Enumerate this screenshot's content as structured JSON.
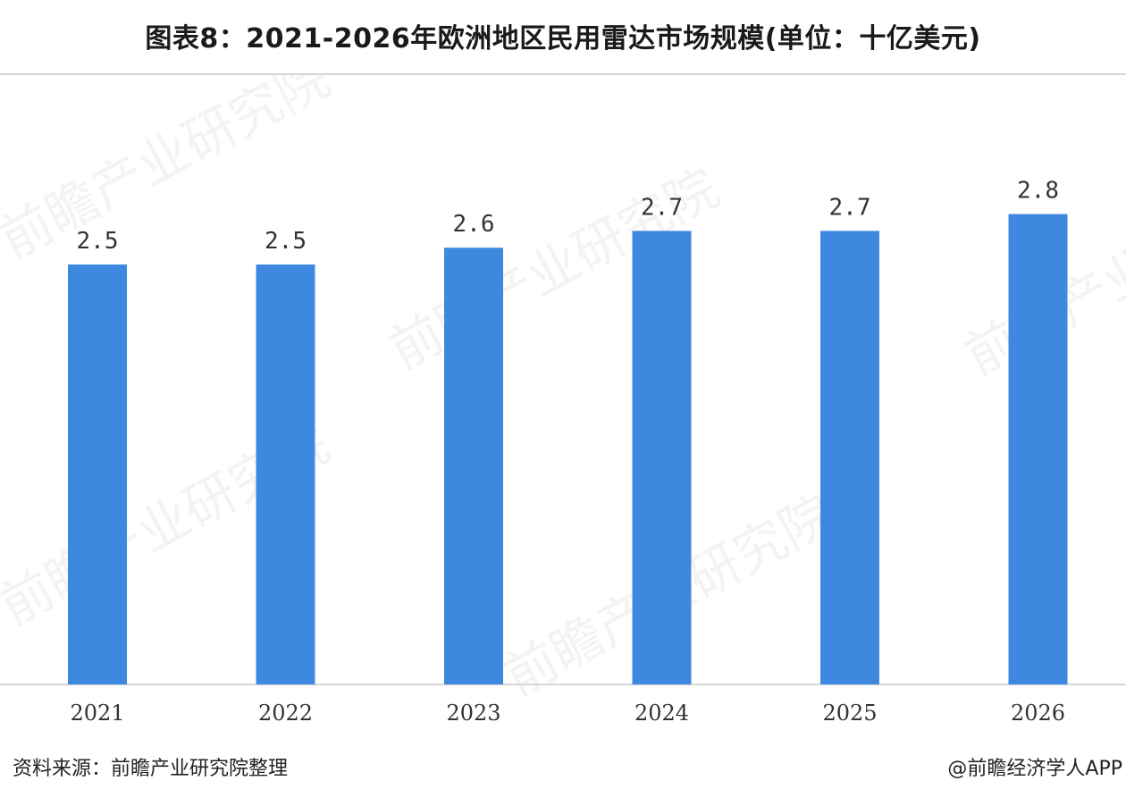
{
  "header": {
    "title": "图表8：2021-2026年欧洲地区民用雷达市场规模(单位：十亿美元)"
  },
  "footer": {
    "source": "资料来源：前瞻产业研究院整理",
    "credit": "@前瞻经济学人APP"
  },
  "watermark": {
    "text": "前瞻产业研究院"
  },
  "colors": {
    "bar": "#3f88e0",
    "axis": "#d6d6d6",
    "label": "#333333"
  },
  "chart_data": {
    "type": "bar",
    "categories": [
      "2021",
      "2022",
      "2023",
      "2024",
      "2025",
      "2026"
    ],
    "values": [
      2.5,
      2.5,
      2.6,
      2.7,
      2.7,
      2.8
    ],
    "value_labels": [
      "2.5",
      "2.5",
      "2.6",
      "2.7",
      "2.7",
      "2.8"
    ],
    "title": "图表8：2021-2026年欧洲地区民用雷达市场规模(单位：十亿美元)",
    "xlabel": "",
    "ylabel": "",
    "grid": false,
    "y_axis_visible": false
  }
}
